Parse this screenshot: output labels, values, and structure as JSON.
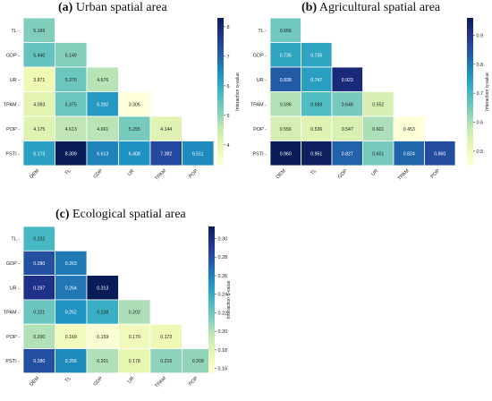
{
  "chart_data": [
    {
      "type": "heatmap",
      "panel_letter": "(a)",
      "title": "Urban spatial area",
      "row_labels": [
        "TL",
        "GDP",
        "UR",
        "TPAM",
        "POP",
        "PSTI"
      ],
      "col_labels": [
        "DEM",
        "TL",
        "GDP",
        "UR",
        "TPAM",
        "POP"
      ],
      "values": [
        [
          5.169
        ],
        [
          5.44,
          5.149
        ],
        [
          3.871,
          5.375,
          4.676
        ],
        [
          4.093,
          5.375,
          6.292,
          3.306
        ],
        [
          4.175,
          4.613,
          4.661,
          5.255,
          4.144
        ],
        [
          6.173,
          8.309,
          6.613,
          6.408,
          7.382,
          6.511
        ]
      ],
      "colorbar_label": "Interaction q-value",
      "colorbar_ticks": [
        "4",
        "5",
        "6",
        "7",
        "8"
      ],
      "colorbar_range": [
        3.3,
        8.3
      ],
      "lower_triangle": true
    },
    {
      "type": "heatmap",
      "panel_letter": "(b)",
      "title": "Agricultural spatial area",
      "row_labels": [
        "TL",
        "GDP",
        "UR",
        "TPAM",
        "POP",
        "PSTI"
      ],
      "col_labels": [
        "DEM",
        "TL",
        "GDP",
        "UR",
        "TPAM",
        "POP"
      ],
      "values": [
        [
          0.656
        ],
        [
          0.735,
          0.735
        ],
        [
          0.838,
          0.747,
          0.923
        ],
        [
          0.596,
          0.689,
          0.648,
          0.552
        ],
        [
          0.556,
          0.536,
          0.547,
          0.601,
          0.453
        ],
        [
          0.96,
          0.951,
          0.827,
          0.651,
          0.824,
          0.86
        ]
      ],
      "colorbar_label": "Interaction q-value",
      "colorbar_ticks": [
        "0.5",
        "0.6",
        "0.7",
        "0.8",
        "0.9"
      ],
      "colorbar_range": [
        0.45,
        0.96
      ],
      "lower_triangle": true
    },
    {
      "type": "heatmap",
      "panel_letter": "(c)",
      "title": "Ecological spatial area",
      "row_labels": [
        "TL",
        "GDP",
        "UR",
        "TPAM",
        "POP",
        "PSTI"
      ],
      "col_labels": [
        "DEM",
        "TL",
        "GDP",
        "UR",
        "TPAM",
        "POP"
      ],
      "values": [
        [
          0.232
        ],
        [
          0.28,
          0.263
        ],
        [
          0.297,
          0.264,
          0.313
        ],
        [
          0.221,
          0.252,
          0.238,
          0.202
        ],
        [
          0.2,
          0.169,
          0.159,
          0.17,
          0.173
        ],
        [
          0.28,
          0.256,
          0.201,
          0.178,
          0.21,
          0.209
        ]
      ],
      "colorbar_label": "Interaction q-value",
      "colorbar_ticks": [
        "0.16",
        "0.18",
        "0.20",
        "0.22",
        "0.24",
        "0.26",
        "0.28",
        "0.30"
      ],
      "colorbar_range": [
        0.155,
        0.313
      ],
      "lower_triangle": true
    }
  ]
}
